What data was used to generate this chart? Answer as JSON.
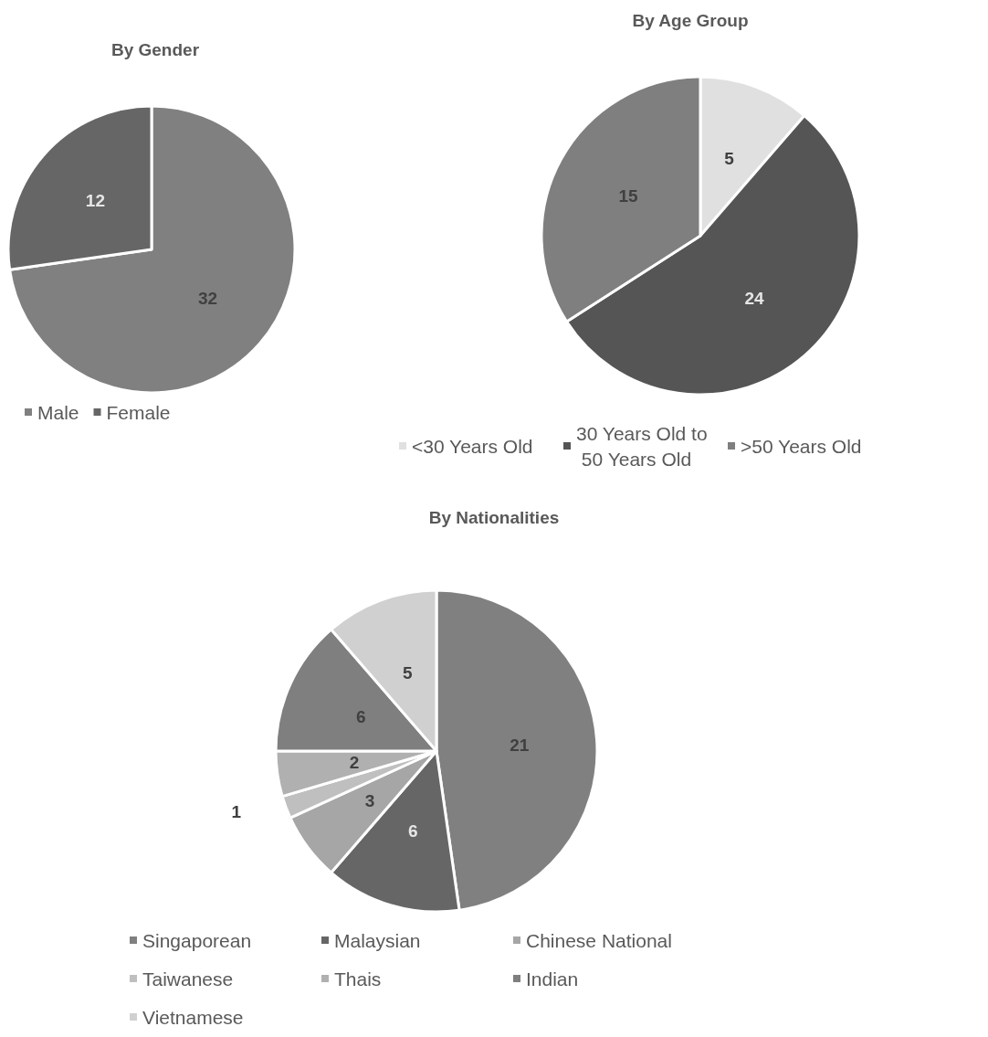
{
  "chart_data": [
    {
      "type": "pie",
      "title": "By Gender",
      "categories": [
        "Male",
        "Female"
      ],
      "values": [
        32,
        12
      ],
      "colors": [
        "#808080",
        "#666666"
      ],
      "data_labels": true,
      "legend": "bottom"
    },
    {
      "type": "pie",
      "title": "By Age Group",
      "categories": [
        "<30 Years Old",
        "30 Years Old to 50 Years Old",
        ">50 Years Old"
      ],
      "values": [
        5,
        24,
        15
      ],
      "colors": [
        "#e0e0e0",
        "#555555",
        "#7f7f7f"
      ],
      "data_labels": true,
      "legend": "bottom"
    },
    {
      "type": "pie",
      "title": "By Nationalities",
      "categories": [
        "Singaporean",
        "Malaysian",
        "Chinese National",
        "Taiwanese",
        "Thais",
        "Indian",
        "Vietnamese"
      ],
      "values": [
        21,
        6,
        3,
        1,
        2,
        6,
        5
      ],
      "colors": [
        "#808080",
        "#666666",
        "#a6a6a6",
        "#bfbfbf",
        "#b0b0b0",
        "#7f7f7f",
        "#d0d0d0"
      ],
      "data_labels": true,
      "legend": "bottom"
    }
  ]
}
